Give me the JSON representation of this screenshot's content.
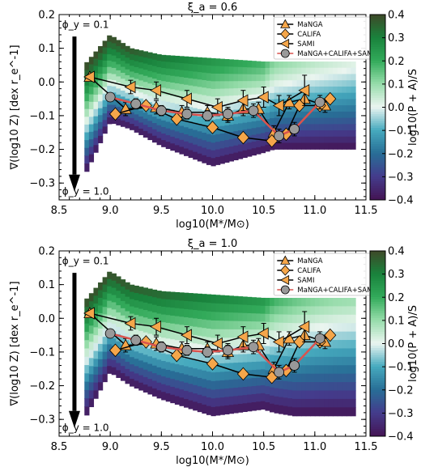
{
  "chart_data": [
    {
      "type": "line",
      "title": "ξ_a = 0.6",
      "xlabel": "log10(M*/M⊙)",
      "ylabel": "∇(log10 Z) [dex r_e^-1]",
      "colorbar_label": "log10(P + A)/S",
      "xlim": [
        8.5,
        11.5
      ],
      "ylim": [
        -0.35,
        0.2
      ],
      "xticks": [
        "8.5",
        "9.0",
        "9.5",
        "10.0",
        "10.5",
        "11.0",
        "11.5"
      ],
      "yticks": [
        "0.2",
        "0.1",
        "0.0",
        "−0.1",
        "−0.2",
        "−0.3"
      ],
      "colorbar_ticks": [
        "0.4",
        "0.3",
        "0.2",
        "0.1",
        "0.0",
        "−0.1",
        "−0.2",
        "−0.3",
        "−0.4"
      ],
      "colorbar_range": [
        -0.4,
        0.4
      ],
      "annotations": {
        "phi_top": "ϕ_y = 0.1",
        "phi_bottom": "ϕ_y = 1.0"
      },
      "legend_position": "upper right",
      "band": {
        "x": [
          8.75,
          9.0,
          9.2,
          9.5,
          10.0,
          10.5,
          10.6,
          10.8,
          11.0,
          11.2,
          11.4
        ],
        "upper": [
          0.05,
          0.14,
          0.1,
          0.08,
          0.07,
          0.06,
          0.06,
          0.06,
          0.06,
          0.06,
          0.06
        ],
        "lower": [
          -0.28,
          -0.12,
          -0.14,
          -0.19,
          -0.25,
          -0.21,
          -0.2,
          -0.2,
          -0.2,
          -0.2,
          -0.2
        ],
        "color_by_x": [
          0.4,
          0.4,
          0.38,
          0.33,
          0.26,
          0.19,
          0.12,
          0.09,
          0.06,
          0.04,
          0.02
        ],
        "color_gradient_y": 0.85
      },
      "series": [
        {
          "name": "MaNGA",
          "marker": "triangle-up",
          "x": [
            8.8,
            9.15,
            9.45,
            9.7,
            9.95,
            10.15,
            10.3,
            10.45,
            10.6,
            10.75,
            10.9,
            11.1
          ],
          "y": [
            0.015,
            -0.08,
            -0.075,
            -0.09,
            -0.09,
            -0.1,
            -0.08,
            -0.08,
            -0.15,
            -0.06,
            -0.05,
            -0.07
          ],
          "err": [
            0,
            0.02,
            0.02,
            0.02,
            0.02,
            0.02,
            0.02,
            0.02,
            0.02,
            0.02,
            0.02,
            0.02
          ]
        },
        {
          "name": "CALIFA",
          "marker": "diamond",
          "x": [
            9.05,
            9.35,
            9.65,
            10.0,
            10.3,
            10.58,
            10.72,
            10.85,
            11.05,
            11.15
          ],
          "y": [
            -0.095,
            -0.07,
            -0.11,
            -0.135,
            -0.165,
            -0.175,
            -0.155,
            -0.07,
            -0.07,
            -0.05
          ],
          "err": [
            0,
            0,
            0,
            0,
            0,
            0,
            0,
            0,
            0,
            0
          ]
        },
        {
          "name": "SAMI",
          "marker": "triangle-left",
          "x": [
            8.8,
            9.2,
            9.45,
            9.75,
            10.05,
            10.3,
            10.5,
            10.65,
            10.9
          ],
          "y": [
            0.015,
            -0.015,
            -0.025,
            -0.05,
            -0.075,
            -0.055,
            -0.045,
            -0.07,
            -0.025
          ],
          "err": [
            0,
            0.02,
            0.025,
            0.025,
            0.025,
            0.03,
            0.03,
            0.03,
            0.045
          ]
        },
        {
          "name": "MaNGA+CALIFA+SAMI",
          "marker": "circle",
          "x": [
            9.0,
            9.25,
            9.5,
            9.75,
            9.95,
            10.15,
            10.4,
            10.65,
            10.8,
            11.05
          ],
          "y": [
            -0.045,
            -0.065,
            -0.085,
            -0.095,
            -0.1,
            -0.095,
            -0.085,
            -0.16,
            -0.14,
            -0.06
          ],
          "err": [
            0,
            0.015,
            0.015,
            0.015,
            0.015,
            0.02,
            0.02,
            0.02,
            0.02,
            0.02
          ]
        }
      ]
    },
    {
      "type": "line",
      "title": "ξ_a = 1.0",
      "xlabel": "log10(M*/M⊙)",
      "ylabel": "∇(log10 Z) [dex r_e^-1]",
      "colorbar_label": "log10(P + A)/S",
      "xlim": [
        8.5,
        11.5
      ],
      "ylim": [
        -0.35,
        0.2
      ],
      "xticks": [
        "8.5",
        "9.0",
        "9.5",
        "10.0",
        "10.5",
        "11.0",
        "11.5"
      ],
      "yticks": [
        "0.2",
        "0.1",
        "0.0",
        "−0.1",
        "−0.2",
        "−0.3"
      ],
      "colorbar_ticks": [
        "0.4",
        "0.3",
        "0.2",
        "0.1",
        "0.0",
        "−0.1",
        "−0.2",
        "−0.3",
        "−0.4"
      ],
      "colorbar_range": [
        -0.4,
        0.4
      ],
      "annotations": {
        "phi_top": "ϕ_y = 0.1",
        "phi_bottom": "ϕ_y = 1.0"
      },
      "legend_position": "upper right",
      "band": {
        "x": [
          8.75,
          9.0,
          9.2,
          9.5,
          10.0,
          10.5,
          10.6,
          10.8,
          11.0,
          11.2,
          11.4
        ],
        "upper": [
          0.05,
          0.14,
          0.1,
          0.08,
          0.07,
          0.06,
          0.06,
          0.06,
          0.06,
          0.06,
          0.06
        ],
        "lower": [
          -0.3,
          -0.16,
          -0.2,
          -0.24,
          -0.29,
          -0.27,
          -0.28,
          -0.29,
          -0.29,
          -0.29,
          -0.29
        ],
        "color_by_x": [
          0.4,
          0.4,
          0.38,
          0.36,
          0.31,
          0.26,
          0.2,
          0.16,
          0.13,
          0.11,
          0.1
        ],
        "color_gradient_y": 0.95
      },
      "series": [
        {
          "name": "MaNGA",
          "marker": "triangle-up",
          "x": [
            8.8,
            9.15,
            9.45,
            9.7,
            9.95,
            10.15,
            10.3,
            10.45,
            10.6,
            10.75,
            10.9,
            11.1
          ],
          "y": [
            0.015,
            -0.08,
            -0.075,
            -0.09,
            -0.09,
            -0.1,
            -0.08,
            -0.08,
            -0.15,
            -0.06,
            -0.05,
            -0.07
          ],
          "err": [
            0,
            0.02,
            0.02,
            0.02,
            0.02,
            0.02,
            0.02,
            0.02,
            0.02,
            0.02,
            0.02,
            0.02
          ]
        },
        {
          "name": "CALIFA",
          "marker": "diamond",
          "x": [
            9.05,
            9.35,
            9.65,
            10.0,
            10.3,
            10.58,
            10.72,
            10.85,
            11.05,
            11.15
          ],
          "y": [
            -0.095,
            -0.07,
            -0.11,
            -0.135,
            -0.165,
            -0.175,
            -0.155,
            -0.07,
            -0.07,
            -0.05
          ],
          "err": [
            0,
            0,
            0,
            0,
            0,
            0,
            0,
            0,
            0,
            0
          ]
        },
        {
          "name": "SAMI",
          "marker": "triangle-left",
          "x": [
            8.8,
            9.2,
            9.45,
            9.75,
            10.05,
            10.3,
            10.5,
            10.65,
            10.9
          ],
          "y": [
            0.015,
            -0.015,
            -0.025,
            -0.05,
            -0.075,
            -0.055,
            -0.045,
            -0.07,
            -0.025
          ],
          "err": [
            0,
            0.02,
            0.025,
            0.025,
            0.025,
            0.03,
            0.03,
            0.03,
            0.045
          ]
        },
        {
          "name": "MaNGA+CALIFA+SAMI",
          "marker": "circle",
          "x": [
            9.0,
            9.25,
            9.5,
            9.75,
            9.95,
            10.15,
            10.4,
            10.65,
            10.8,
            11.05
          ],
          "y": [
            -0.045,
            -0.065,
            -0.085,
            -0.095,
            -0.1,
            -0.095,
            -0.085,
            -0.16,
            -0.14,
            -0.06
          ],
          "err": [
            0,
            0.015,
            0.015,
            0.015,
            0.015,
            0.02,
            0.02,
            0.02,
            0.02,
            0.02
          ]
        }
      ]
    }
  ],
  "colors": {
    "marker_fill": "#f5a64a",
    "marker_edge": "#000000",
    "combined_fill": "#999999",
    "combined_line": "#d9534f",
    "arrow": "#000000"
  }
}
